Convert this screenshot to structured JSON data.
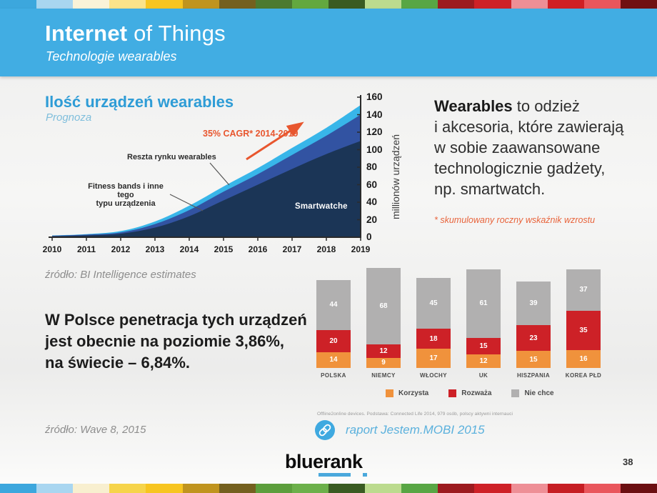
{
  "header": {
    "title_bold": "Internet",
    "title_rest": " of Things",
    "subtitle": "Technologie wearables"
  },
  "left_chart": {
    "title": "Ilość urządzeń wearables",
    "subtitle": "Prognoza",
    "cagr_annotation": "35% CAGR* 2014-2019",
    "label_reszta": "Reszta rynku wearables",
    "label_fitness_line1": "Fitness bands i inne tego",
    "label_fitness_line2": "typu urządzenia",
    "label_smartwatche": "Smartwatche",
    "y_axis_unit": "millionów urządzeń",
    "source": "źródło: BI Intelligence estimates"
  },
  "right_text": {
    "bold": "Wearables",
    "lines": [
      " to odzież",
      "i akcesoria, które zawierają",
      "w sobie zaawansowane",
      "technologicznie gadżety,",
      "np. smartwatch."
    ],
    "footnote": "* skumulowany roczny wskaźnik wzrostu"
  },
  "poland_text": {
    "lines": [
      "W Polsce penetracja tych urządzeń",
      "jest obecnie na poziomie 3,86%,",
      "na świecie – 6,84%."
    ],
    "source": "źródło: Wave 8, 2015"
  },
  "bar_section": {
    "footnote": "Offline2online devices. Podstawa: Connected Life 2014, 979 osób, polscy aktywni internauci",
    "link_text": "raport Jestem.MOBI 2015"
  },
  "footer": {
    "logo_text": "bluerank",
    "page_number": "38"
  },
  "chart_data": [
    {
      "type": "area",
      "stacked": true,
      "title": "Ilość urządzeń wearables",
      "subtitle": "Prognoza",
      "xlabel": "",
      "ylabel": "millionów urządzeń",
      "categories": [
        2010,
        2011,
        2012,
        2013,
        2014,
        2015,
        2016,
        2017,
        2018,
        2019
      ],
      "series": [
        {
          "name": "Smartwatche",
          "color": "#1b3556",
          "values": [
            1,
            2,
            4,
            11,
            24,
            42,
            60,
            78,
            95,
            110
          ]
        },
        {
          "name": "Fitness bands i inne tego typu urządzenia",
          "color": "#3253a2",
          "values": [
            0.7,
            1,
            1.5,
            4,
            7,
            10,
            12,
            16,
            21,
            30
          ]
        },
        {
          "name": "Reszta rynku wearables",
          "color": "#38b6e9",
          "values": [
            0.3,
            0.5,
            1.5,
            3,
            5,
            6,
            7,
            8,
            9,
            11
          ]
        }
      ],
      "ylim": [
        0,
        160
      ],
      "yticks": [
        0,
        20,
        40,
        60,
        80,
        100,
        120,
        140,
        160
      ],
      "annotation": "35% CAGR* 2014-2019",
      "grid": false,
      "legend_position": "in-chart labels"
    },
    {
      "type": "bar",
      "stacked": true,
      "categories": [
        "POLSKA",
        "NIEMCY",
        "WŁOCHY",
        "UK",
        "HISZPANIA",
        "KOREA PŁD"
      ],
      "series": [
        {
          "name": "Korzysta",
          "color": "#f0923c",
          "values": [
            14,
            9,
            17,
            12,
            15,
            16
          ]
        },
        {
          "name": "Rozważa",
          "color": "#cd2127",
          "values": [
            20,
            12,
            18,
            15,
            23,
            35
          ]
        },
        {
          "name": "Nie chce",
          "color": "#b1b0b0",
          "values": [
            44,
            68,
            45,
            61,
            39,
            37
          ]
        }
      ],
      "legend_position": "bottom",
      "grid": false
    }
  ],
  "colors": {
    "header_blue": "#41ade3",
    "chart_title_blue": "#2e9cd6",
    "annotation_orange": "#e8562e",
    "link_blue": "#3fa9e0",
    "source_gray": "#8d8d8d"
  },
  "stripes": {
    "top": [
      "#3ca7dd",
      "#a9d6f0",
      "#faf3d8",
      "#fbe38a",
      "#f7c520",
      "#c0941e",
      "#74601f",
      "#4c7a30",
      "#63a83f",
      "#3a5b22",
      "#bcdb8e",
      "#58a644",
      "#9c1b1f",
      "#ce2127",
      "#ee8f96",
      "#d01f24",
      "#e9565c",
      "#701012"
    ],
    "bottom": [
      "#3ca7dd",
      "#a9d6f0",
      "#f8efcf",
      "#f6d44a",
      "#f7c520",
      "#c0941e",
      "#74601f",
      "#5c9e3c",
      "#6cb04a",
      "#3a5b22",
      "#bcdb8e",
      "#58a644",
      "#9c1b1f",
      "#ce2127",
      "#ee8f96",
      "#c61e23",
      "#e9565c",
      "#6b0f11"
    ]
  }
}
